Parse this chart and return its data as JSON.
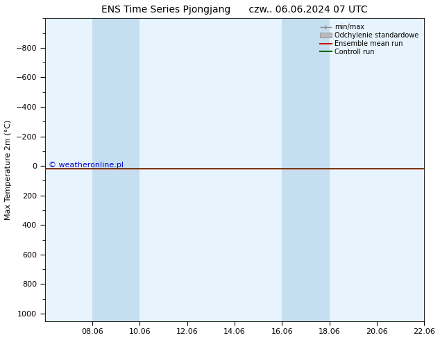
{
  "title": "ENS Time Series Pjongjang",
  "title2": "czw.. 06.06.2024 07 UTC",
  "ylabel": "Max Temperature 2m (°C)",
  "ylim": [
    -1000,
    1050
  ],
  "yticks": [
    -800,
    -600,
    -400,
    -200,
    0,
    200,
    400,
    600,
    800,
    1000
  ],
  "xtick_labels": [
    "08.06",
    "10.06",
    "12.06",
    "14.06",
    "16.06",
    "18.06",
    "20.06",
    "22.06"
  ],
  "xtick_positions": [
    2,
    4,
    6,
    8,
    10,
    12,
    14,
    16
  ],
  "x_min": 0,
  "x_max": 16,
  "bg_color": "#ffffff",
  "plot_bg_color": "#e8f4fd",
  "shaded_bands": [
    {
      "x_start": 2,
      "x_end": 4
    },
    {
      "x_start": 10,
      "x_end": 12
    }
  ],
  "shaded_color": "#c5dff0",
  "control_run_y": 20.0,
  "ensemble_mean_y": 20.0,
  "control_run_color": "#006600",
  "ensemble_mean_color": "#cc0000",
  "minmax_color": "#888888",
  "std_color": "#bbbbbb",
  "watermark": "© weatheronline.pl",
  "watermark_color": "#0000cc",
  "legend_items": [
    "min/max",
    "Odchylenie standardowe",
    "Ensemble mean run",
    "Controll run"
  ],
  "legend_line_colors": [
    "#888888",
    "#bbbbbb",
    "#cc0000",
    "#006600"
  ]
}
